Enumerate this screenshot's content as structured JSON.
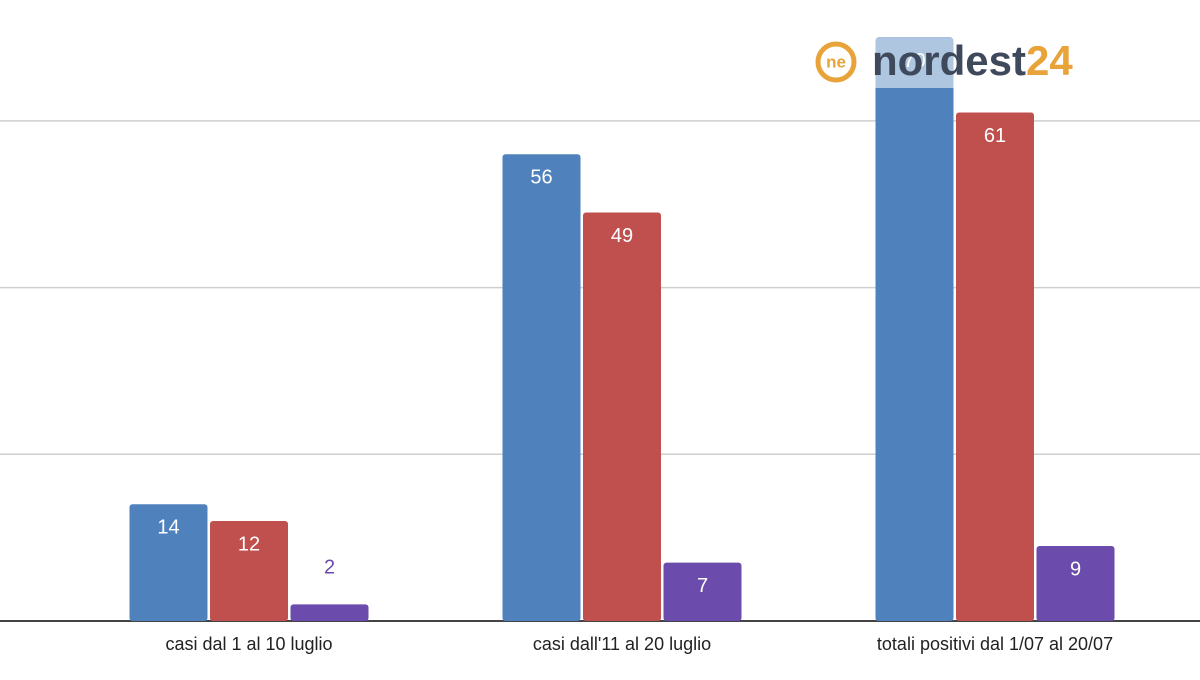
{
  "chart_data": {
    "type": "bar",
    "categories": [
      "casi dal 1 al 10 luglio",
      "casi dall'11 al 20 luglio",
      "totali positivi dal 1/07 al 20/07"
    ],
    "series": [
      {
        "color": "#4f81bd",
        "values": [
          14,
          56,
          70
        ]
      },
      {
        "color": "#c0504d",
        "values": [
          12,
          49,
          61
        ]
      },
      {
        "color": "#6b4bab",
        "values": [
          2,
          7,
          9
        ]
      }
    ],
    "ylim": [
      0,
      74.5
    ],
    "yticks": [
      0,
      20,
      40,
      60
    ],
    "grid": true,
    "watermark": {
      "prefix": "nordest",
      "suffix": "24",
      "icon": "ne"
    }
  }
}
